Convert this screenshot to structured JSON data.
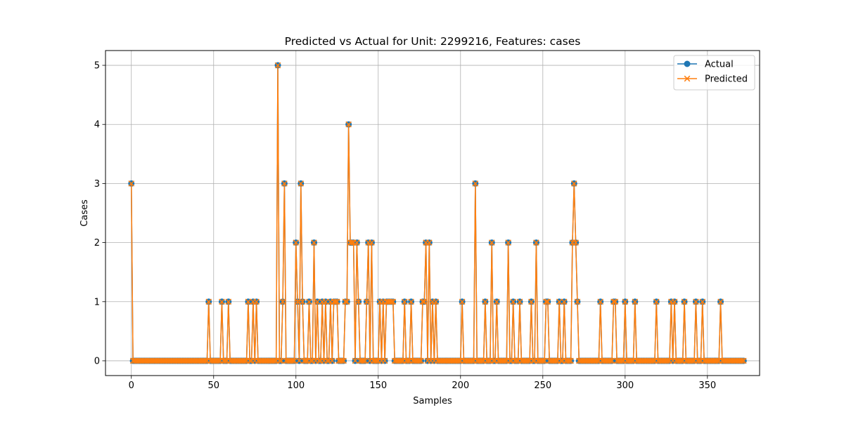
{
  "chart_data": {
    "type": "line",
    "title": "Predicted vs Actual for Unit: 2299216, Features: cases",
    "xlabel": "Samples",
    "ylabel": "Cases",
    "xlim": [
      -15.7,
      381.7
    ],
    "ylim": [
      -0.25,
      5.25
    ],
    "xticks": [
      0,
      50,
      100,
      150,
      200,
      250,
      300,
      350
    ],
    "yticks": [
      0,
      1,
      2,
      3,
      4,
      5
    ],
    "grid": true,
    "legend_position": "top-right",
    "x_start": 0,
    "series": [
      {
        "name": "Actual",
        "color": "#1f77b4",
        "marker": "circle",
        "values": [
          3,
          0,
          0,
          0,
          0,
          0,
          0,
          0,
          0,
          0,
          0,
          0,
          0,
          0,
          0,
          0,
          0,
          0,
          0,
          0,
          0,
          0,
          0,
          0,
          0,
          0,
          0,
          0,
          0,
          0,
          0,
          0,
          0,
          0,
          0,
          0,
          0,
          0,
          0,
          0,
          0,
          0,
          0,
          0,
          0,
          0,
          0,
          1,
          0,
          0,
          0,
          0,
          0,
          0,
          0,
          1,
          0,
          0,
          0,
          1,
          0,
          0,
          0,
          0,
          0,
          0,
          0,
          0,
          0,
          0,
          0,
          1,
          0,
          0,
          1,
          0,
          1,
          0,
          0,
          0,
          0,
          0,
          0,
          0,
          0,
          0,
          0,
          0,
          0,
          5,
          0,
          0,
          1,
          3,
          0,
          0,
          0,
          0,
          0,
          0,
          2,
          1,
          0,
          3,
          1,
          0,
          0,
          0,
          1,
          0,
          0,
          2,
          0,
          1,
          0,
          0,
          1,
          0,
          1,
          0,
          0,
          1,
          0,
          1,
          1,
          1,
          0,
          0,
          0,
          0,
          1,
          1,
          4,
          2,
          2,
          2,
          0,
          2,
          1,
          0,
          0,
          0,
          0,
          1,
          2,
          0,
          2,
          0,
          0,
          0,
          0,
          1,
          0,
          1,
          0,
          1,
          1,
          1,
          1,
          1,
          0,
          0,
          0,
          0,
          0,
          0,
          1,
          0,
          0,
          0,
          1,
          0,
          0,
          0,
          0,
          0,
          0,
          1,
          1,
          2,
          0,
          2,
          0,
          1,
          0,
          1,
          0,
          0,
          0,
          0,
          0,
          0,
          0,
          0,
          0,
          0,
          0,
          0,
          0,
          0,
          0,
          1,
          0,
          0,
          0,
          0,
          0,
          0,
          0,
          3,
          0,
          0,
          0,
          0,
          0,
          1,
          0,
          0,
          0,
          2,
          0,
          0,
          1,
          0,
          0,
          0,
          0,
          0,
          0,
          2,
          0,
          0,
          1,
          0,
          0,
          0,
          1,
          0,
          0,
          0,
          0,
          0,
          0,
          1,
          0,
          0,
          2,
          0,
          0,
          0,
          0,
          0,
          1,
          1,
          0,
          0,
          0,
          0,
          0,
          0,
          1,
          0,
          0,
          1,
          0,
          0,
          0,
          0,
          2,
          3,
          2,
          1,
          0,
          0,
          0,
          0,
          0,
          0,
          0,
          0,
          0,
          0,
          0,
          0,
          0,
          1,
          0,
          0,
          0,
          0,
          0,
          0,
          0,
          1,
          1,
          0,
          0,
          0,
          0,
          0,
          1,
          0,
          0,
          0,
          0,
          0,
          1,
          0,
          0,
          0,
          0,
          0,
          0,
          0,
          0,
          0,
          0,
          0,
          0,
          1,
          0,
          0,
          0,
          0,
          0,
          0,
          0,
          0,
          1,
          0,
          1,
          0,
          0,
          0,
          0,
          0,
          1,
          0,
          0,
          0,
          0,
          0,
          0,
          1,
          0,
          0,
          0,
          1,
          0,
          0,
          0,
          0,
          0,
          0,
          0,
          0,
          0,
          0,
          1,
          0,
          0,
          0,
          0,
          0,
          0,
          0,
          0,
          0,
          0,
          0,
          0,
          0,
          0
        ]
      },
      {
        "name": "Predicted",
        "color": "#ff7f0e",
        "marker": "x",
        "values": [
          3,
          0,
          0,
          0,
          0,
          0,
          0,
          0,
          0,
          0,
          0,
          0,
          0,
          0,
          0,
          0,
          0,
          0,
          0,
          0,
          0,
          0,
          0,
          0,
          0,
          0,
          0,
          0,
          0,
          0,
          0,
          0,
          0,
          0,
          0,
          0,
          0,
          0,
          0,
          0,
          0,
          0,
          0,
          0,
          0,
          0,
          0,
          1,
          0,
          0,
          0,
          0,
          0,
          0,
          0,
          1,
          0,
          0,
          0,
          1,
          0,
          0,
          0,
          0,
          0,
          0,
          0,
          0,
          0,
          0,
          0,
          1,
          0,
          0,
          1,
          0,
          1,
          0,
          0,
          0,
          0,
          0,
          0,
          0,
          0,
          0,
          0,
          0,
          0,
          5,
          0,
          0,
          1,
          3,
          0,
          0,
          0,
          0,
          0,
          0,
          2,
          1,
          0,
          3,
          1,
          0,
          0,
          0,
          1,
          0,
          0,
          2,
          0,
          1,
          0,
          0,
          1,
          0,
          1,
          0,
          0,
          1,
          0,
          1,
          1,
          1,
          0,
          0,
          0,
          0,
          1,
          1,
          4,
          2,
          2,
          2,
          0,
          2,
          1,
          0,
          0,
          0,
          0,
          1,
          2,
          0,
          2,
          0,
          0,
          0,
          0,
          1,
          0,
          1,
          0,
          1,
          1,
          1,
          1,
          1,
          0,
          0,
          0,
          0,
          0,
          0,
          1,
          0,
          0,
          0,
          1,
          0,
          0,
          0,
          0,
          0,
          0,
          1,
          1,
          2,
          0,
          2,
          0,
          1,
          0,
          1,
          0,
          0,
          0,
          0,
          0,
          0,
          0,
          0,
          0,
          0,
          0,
          0,
          0,
          0,
          0,
          1,
          0,
          0,
          0,
          0,
          0,
          0,
          0,
          3,
          0,
          0,
          0,
          0,
          0,
          1,
          0,
          0,
          0,
          2,
          0,
          0,
          1,
          0,
          0,
          0,
          0,
          0,
          0,
          2,
          0,
          0,
          1,
          0,
          0,
          0,
          1,
          0,
          0,
          0,
          0,
          0,
          0,
          1,
          0,
          0,
          2,
          0,
          0,
          0,
          0,
          0,
          1,
          1,
          0,
          0,
          0,
          0,
          0,
          0,
          1,
          0,
          0,
          1,
          0,
          0,
          0,
          0,
          2,
          3,
          2,
          1,
          0,
          0,
          0,
          0,
          0,
          0,
          0,
          0,
          0,
          0,
          0,
          0,
          0,
          1,
          0,
          0,
          0,
          0,
          0,
          0,
          0,
          1,
          1,
          0,
          0,
          0,
          0,
          0,
          1,
          0,
          0,
          0,
          0,
          0,
          1,
          0,
          0,
          0,
          0,
          0,
          0,
          0,
          0,
          0,
          0,
          0,
          0,
          1,
          0,
          0,
          0,
          0,
          0,
          0,
          0,
          0,
          1,
          0,
          1,
          0,
          0,
          0,
          0,
          0,
          1,
          0,
          0,
          0,
          0,
          0,
          0,
          1,
          0,
          0,
          0,
          1,
          0,
          0,
          0,
          0,
          0,
          0,
          0,
          0,
          0,
          0,
          1,
          0,
          0,
          0,
          0,
          0,
          0,
          0,
          0,
          0,
          0,
          0,
          0,
          0,
          0
        ]
      }
    ]
  }
}
